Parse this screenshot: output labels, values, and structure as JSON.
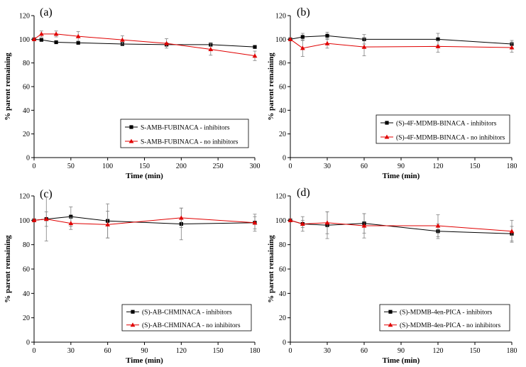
{
  "colors": {
    "series1": "#000000",
    "series2": "#e00000",
    "error_bar": "#808080",
    "axis": "#000000"
  },
  "chart_data": [
    {
      "type": "line",
      "panel_label": "(a)",
      "xlabel": "Time (min)",
      "ylabel": "% parent remaining",
      "xlim": [
        0,
        300
      ],
      "ylim": [
        0,
        120
      ],
      "xticks": [
        0,
        50,
        100,
        150,
        200,
        250,
        300
      ],
      "yticks": [
        0,
        20,
        40,
        60,
        80,
        100,
        120
      ],
      "legend_position": "lower-right",
      "series": [
        {
          "name": "S-AMB-FUBINACA - inhibitors",
          "marker": "square",
          "color": "#000000",
          "x": [
            0,
            10,
            30,
            60,
            120,
            180,
            240,
            300
          ],
          "y": [
            100,
            99.5,
            97.5,
            97,
            96,
            95.5,
            95.5,
            93.5
          ],
          "err": [
            1,
            1,
            1,
            1,
            1,
            1,
            1.5,
            1
          ]
        },
        {
          "name": "S-AMB-FUBINACA - no inhibitors",
          "marker": "triangle",
          "color": "#e00000",
          "x": [
            0,
            10,
            30,
            60,
            120,
            180,
            240,
            300
          ],
          "y": [
            100,
            104.5,
            104.5,
            102.5,
            99.5,
            96.5,
            91.5,
            86
          ],
          "err": [
            1,
            2.5,
            2.5,
            4,
            3.5,
            4,
            5,
            4
          ]
        }
      ]
    },
    {
      "type": "line",
      "panel_label": "(b)",
      "xlabel": "Time (min)",
      "ylabel": "% parent remaining",
      "xlim": [
        0,
        180
      ],
      "ylim": [
        0,
        120
      ],
      "xticks": [
        0,
        30,
        60,
        90,
        120,
        150,
        180
      ],
      "yticks": [
        0,
        20,
        40,
        60,
        80,
        100,
        120
      ],
      "legend_position": "lower-right",
      "series": [
        {
          "name": "(S)-4F-MDMB-BINACA - inhibitors",
          "marker": "square",
          "color": "#000000",
          "x": [
            0,
            10,
            30,
            60,
            120,
            180
          ],
          "y": [
            100,
            102,
            103,
            100,
            100,
            96
          ],
          "err": [
            1,
            3,
            3,
            4,
            5,
            3
          ]
        },
        {
          "name": "(S)-4F-MDMB-BINACA - no inhibitors",
          "marker": "triangle",
          "color": "#e00000",
          "x": [
            0,
            10,
            30,
            60,
            120,
            180
          ],
          "y": [
            100,
            92.5,
            96.5,
            93.5,
            94,
            93
          ],
          "err": [
            1,
            7,
            4,
            7.5,
            5,
            4
          ]
        }
      ]
    },
    {
      "type": "line",
      "panel_label": "(c)",
      "xlabel": "Time (min)",
      "ylabel": "% parent remaining",
      "xlim": [
        0,
        180
      ],
      "ylim": [
        0,
        120
      ],
      "xticks": [
        0,
        30,
        60,
        90,
        120,
        150,
        180
      ],
      "yticks": [
        0,
        20,
        40,
        60,
        80,
        100,
        120
      ],
      "legend_position": "lower-right",
      "series": [
        {
          "name": "(S)-AB-CHMINACA - inhibitors",
          "marker": "square",
          "color": "#000000",
          "x": [
            0,
            10,
            30,
            60,
            120,
            180
          ],
          "y": [
            100,
            101,
            103,
            99.5,
            97,
            98
          ],
          "err": [
            1,
            18,
            8,
            14,
            13,
            7
          ]
        },
        {
          "name": "(S)-AB-CHMINACA - no inhibitors",
          "marker": "triangle",
          "color": "#e00000",
          "x": [
            0,
            10,
            30,
            60,
            120,
            180
          ],
          "y": [
            100,
            101,
            97.5,
            96.5,
            102,
            98
          ],
          "err": [
            1,
            6,
            5,
            11,
            8,
            5
          ]
        }
      ]
    },
    {
      "type": "line",
      "panel_label": "(d)",
      "xlabel": "Time (min)",
      "ylabel": "% parent remaining",
      "xlim": [
        0,
        180
      ],
      "ylim": [
        0,
        120
      ],
      "xticks": [
        0,
        30,
        60,
        90,
        120,
        150,
        180
      ],
      "yticks": [
        0,
        20,
        40,
        60,
        80,
        100,
        120
      ],
      "legend_position": "lower-right",
      "series": [
        {
          "name": "(S)-MDMB-4en-PICA - inhibitors",
          "marker": "square",
          "color": "#000000",
          "x": [
            0,
            10,
            30,
            60,
            120,
            180
          ],
          "y": [
            100,
            97,
            96,
            97.5,
            91,
            89
          ],
          "err": [
            1,
            6,
            11,
            8,
            6,
            6
          ]
        },
        {
          "name": "(S)-MDMB-4en-PICA - no inhibitors",
          "marker": "triangle",
          "color": "#e00000",
          "x": [
            0,
            10,
            30,
            60,
            120,
            180
          ],
          "y": [
            100,
            97,
            98,
            95.5,
            95.5,
            91
          ],
          "err": [
            1,
            3,
            9,
            10,
            9,
            9
          ]
        }
      ]
    }
  ]
}
